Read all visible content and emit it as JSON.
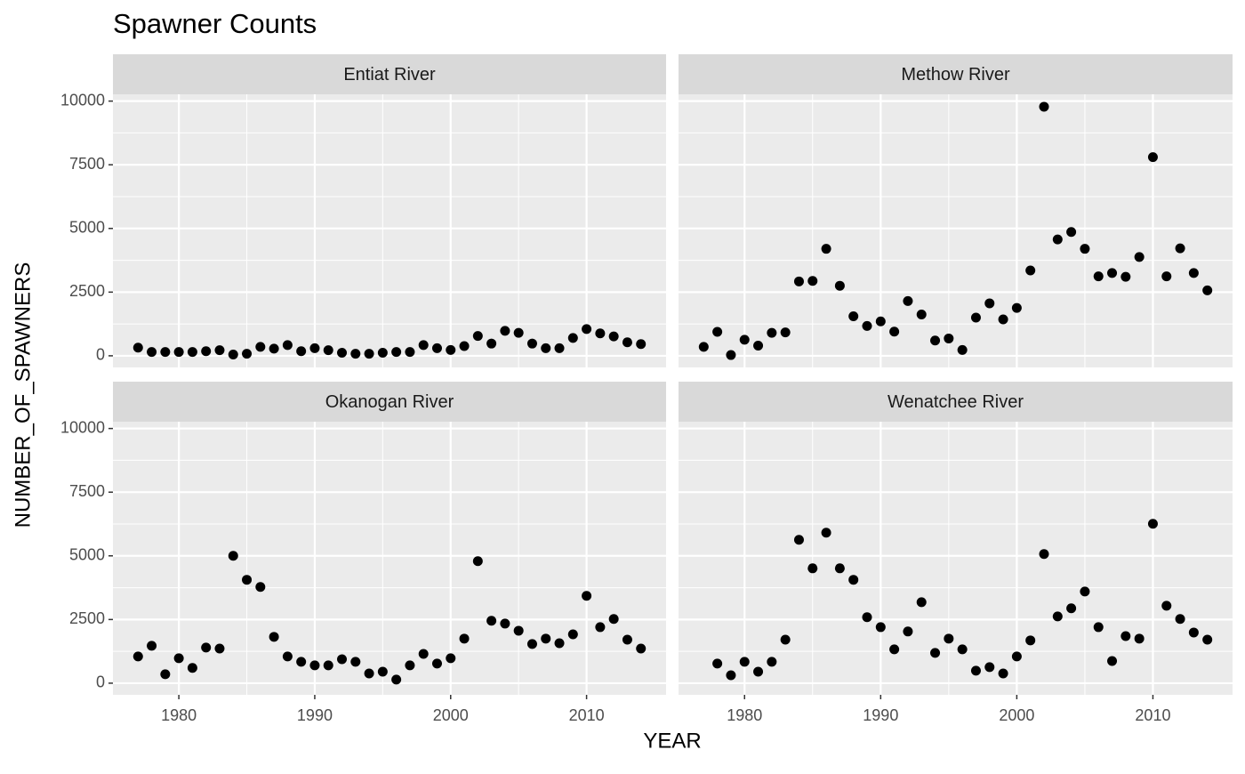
{
  "chart_data": {
    "type": "scatter",
    "title": "Spawner Counts",
    "x_label": "YEAR",
    "y_label": "NUMBER_OF_SPAWNERS",
    "color": "#000000",
    "grid": true,
    "xlim": [
      1975.15,
      2015.85
    ],
    "ylim": [
      -457,
      10267
    ],
    "xticks": [
      1980,
      1990,
      2000,
      2010
    ],
    "yticks": [
      0,
      2500,
      5000,
      7500,
      10000
    ],
    "facets": [
      {
        "name": "Entiat River",
        "x": [
          1977,
          1978,
          1979,
          1980,
          1981,
          1982,
          1983,
          1984,
          1985,
          1986,
          1987,
          1988,
          1989,
          1990,
          1991,
          1992,
          1993,
          1994,
          1995,
          1996,
          1997,
          1998,
          1999,
          2000,
          2001,
          2002,
          2003,
          2004,
          2005,
          2006,
          2007,
          2008,
          2009,
          2010,
          2011,
          2012,
          2013,
          2014
        ],
        "values": [
          320,
          150,
          150,
          150,
          150,
          180,
          220,
          50,
          80,
          350,
          280,
          420,
          180,
          300,
          220,
          120,
          80,
          80,
          120,
          150,
          150,
          420,
          300,
          230,
          380,
          780,
          480,
          980,
          900,
          480,
          300,
          300,
          700,
          1050,
          880,
          760,
          530,
          460
        ]
      },
      {
        "name": "Methow River",
        "x": [
          1977,
          1978,
          1979,
          1980,
          1981,
          1982,
          1983,
          1984,
          1985,
          1986,
          1987,
          1988,
          1989,
          1990,
          1991,
          1992,
          1993,
          1994,
          1995,
          1996,
          1997,
          1998,
          1999,
          2000,
          2001,
          2002,
          2003,
          2004,
          2005,
          2006,
          2007,
          2008,
          2009,
          2010,
          2011,
          2012,
          2013,
          2014
        ],
        "values": [
          350,
          940,
          30,
          630,
          400,
          900,
          920,
          2920,
          2940,
          4200,
          2750,
          1550,
          1170,
          1350,
          950,
          2150,
          1620,
          600,
          680,
          230,
          1500,
          2060,
          1430,
          1880,
          3350,
          9780,
          4570,
          4860,
          4200,
          3120,
          3250,
          3100,
          3880,
          7800,
          3120,
          4220,
          3250,
          2570
        ]
      },
      {
        "name": "Okanogan River",
        "x": [
          1977,
          1978,
          1979,
          1980,
          1981,
          1982,
          1983,
          1984,
          1985,
          1986,
          1987,
          1988,
          1989,
          1990,
          1991,
          1992,
          1993,
          1994,
          1995,
          1996,
          1997,
          1998,
          1999,
          2000,
          2001,
          2002,
          2003,
          2004,
          2005,
          2006,
          2007,
          2008,
          2009,
          2010,
          2011,
          2012,
          2013,
          2014
        ],
        "values": [
          1050,
          1470,
          350,
          980,
          600,
          1400,
          1360,
          5000,
          4060,
          3780,
          1820,
          1050,
          840,
          700,
          700,
          940,
          840,
          380,
          450,
          140,
          700,
          1150,
          770,
          980,
          1750,
          4790,
          2450,
          2340,
          2060,
          1540,
          1750,
          1570,
          1920,
          3430,
          2200,
          2520,
          1710,
          1360
        ]
      },
      {
        "name": "Wenatchee River",
        "x": [
          1978,
          1979,
          1980,
          1981,
          1982,
          1983,
          1984,
          1985,
          1986,
          1987,
          1988,
          1989,
          1990,
          1991,
          1992,
          1993,
          1994,
          1995,
          1996,
          1997,
          1998,
          1999,
          2000,
          2001,
          2002,
          2003,
          2004,
          2005,
          2006,
          2007,
          2008,
          2009,
          2010,
          2011,
          2012,
          2013,
          2014
        ],
        "values": [
          770,
          310,
          840,
          450,
          840,
          1710,
          5630,
          4510,
          5910,
          4510,
          4060,
          2590,
          2200,
          1330,
          2030,
          3180,
          1190,
          1750,
          1330,
          490,
          630,
          380,
          1050,
          1680,
          5070,
          2620,
          2940,
          3600,
          2200,
          870,
          1850,
          1750,
          6260,
          3040,
          2520,
          1990,
          1710
        ]
      }
    ]
  }
}
